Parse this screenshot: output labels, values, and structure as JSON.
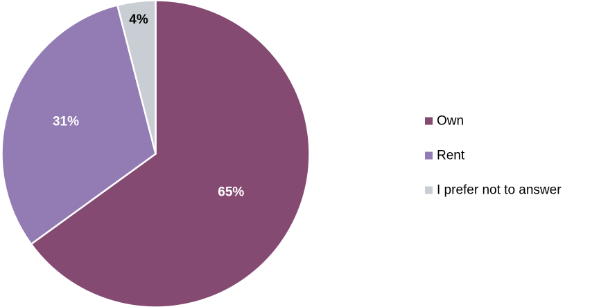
{
  "chart_data": {
    "type": "pie",
    "categories": [
      "Own",
      "Rent",
      "I prefer not to answer"
    ],
    "values": [
      65,
      31,
      4
    ],
    "data_labels": [
      "65%",
      "31%",
      "4%"
    ],
    "colors": [
      "#854A72",
      "#937BB3",
      "#C8CED4"
    ],
    "label_colors": [
      "#FFFFFF",
      "#FFFFFF",
      "#000000"
    ],
    "start_angle_deg": 0,
    "direction": "clockwise",
    "legend_position": "right"
  }
}
